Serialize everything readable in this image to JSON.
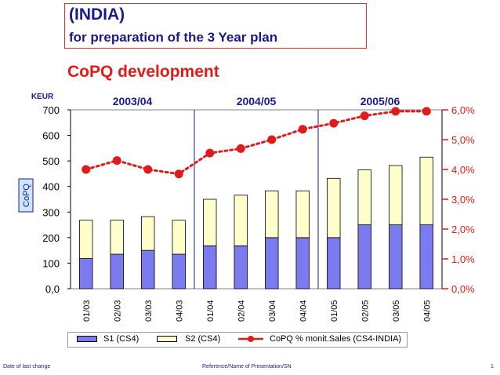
{
  "header": {
    "title": "(INDIA)",
    "subtitle": "for preparation of the 3 Year plan",
    "headline": "CoPQ development"
  },
  "footer": {
    "left": "Date of last change",
    "center": "Reference/Name of Presentation/SN",
    "page": "1"
  },
  "colors": {
    "s1": "#7b7bef",
    "s2": "#ffffcc",
    "line": "#e01b1b",
    "title": "#1a1a8c",
    "divider": "#1a1a8c"
  },
  "chart_data": {
    "type": "bar",
    "stacked": true,
    "categories": [
      "01/03",
      "02/03",
      "03/03",
      "04/03",
      "01/04",
      "02/04",
      "03/04",
      "04/04",
      "01/05",
      "02/05",
      "03/05",
      "04/05"
    ],
    "series": [
      {
        "name": "S1 (CS4)",
        "values": [
          118,
          135,
          150,
          135,
          168,
          168,
          200,
          200,
          200,
          250,
          250,
          250
        ]
      },
      {
        "name": "S2 (CS4)",
        "values": [
          150,
          133,
          132,
          133,
          182,
          198,
          183,
          183,
          232,
          215,
          232,
          265
        ]
      }
    ],
    "line_series": {
      "name": "CoPQ % monit.Sales (CS4-INDIA)",
      "axis": "right",
      "values": [
        4.0,
        4.3,
        4.0,
        3.85,
        4.55,
        4.7,
        5.0,
        5.35,
        5.55,
        5.8,
        5.95,
        5.95
      ]
    },
    "periods": [
      {
        "label": "2003/04",
        "span": [
          0,
          3
        ]
      },
      {
        "label": "2004/05",
        "span": [
          4,
          7
        ]
      },
      {
        "label": "2005/06",
        "span": [
          8,
          11
        ]
      }
    ],
    "left_axis": {
      "unit": "KEUR",
      "label": "CoPQ",
      "ylim": [
        0,
        700
      ],
      "ticks": [
        "0,0",
        "100",
        "200",
        "300",
        "400",
        "500",
        "600",
        "700"
      ]
    },
    "right_axis": {
      "ylim": [
        0,
        6
      ],
      "ticks": [
        "0,0%",
        "1,0%",
        "2,0%",
        "3,0%",
        "4,0%",
        "5,0%",
        "6,0%"
      ]
    },
    "grid": false,
    "legend_position": "bottom"
  }
}
